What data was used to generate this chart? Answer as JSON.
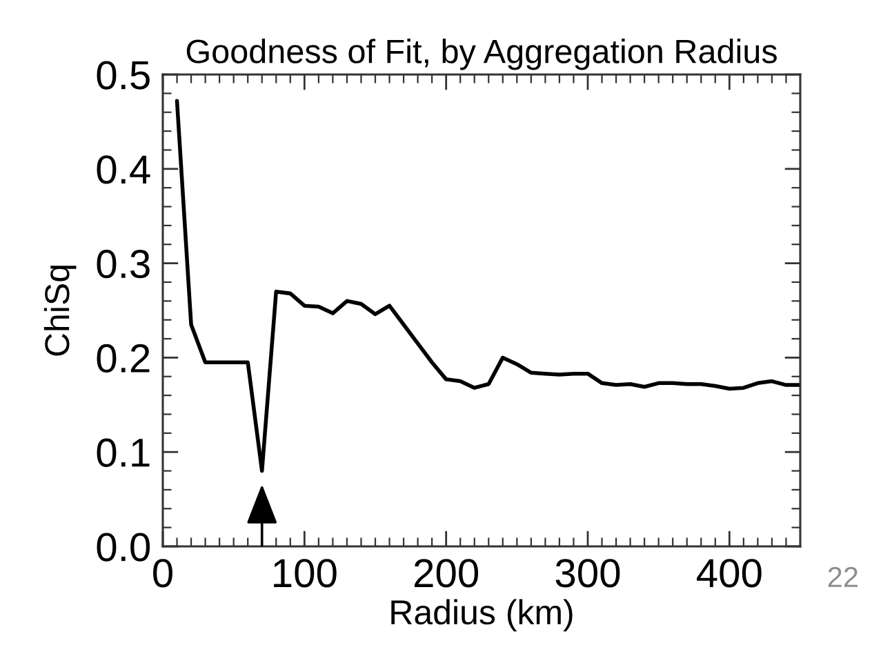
{
  "chart_data": {
    "type": "line",
    "title": "Goodness of Fit, by Aggregation Radius",
    "xlabel": "Radius (km)",
    "ylabel": "ChiSq",
    "x": [
      10,
      20,
      30,
      40,
      50,
      60,
      70,
      80,
      90,
      100,
      110,
      120,
      130,
      140,
      150,
      160,
      170,
      180,
      190,
      200,
      210,
      220,
      230,
      240,
      250,
      260,
      270,
      280,
      290,
      300,
      310,
      320,
      330,
      340,
      350,
      360,
      370,
      380,
      390,
      400,
      410,
      420,
      430,
      440,
      450
    ],
    "series": [
      {
        "color": "#000000",
        "values": [
          0.472,
          0.235,
          0.195,
          0.195,
          0.195,
          0.195,
          0.08,
          0.27,
          0.268,
          0.255,
          0.254,
          0.247,
          0.26,
          0.257,
          0.246,
          0.255,
          0.235,
          0.215,
          0.195,
          0.177,
          0.175,
          0.168,
          0.172,
          0.2,
          0.193,
          0.184,
          0.183,
          0.182,
          0.183,
          0.183,
          0.173,
          0.171,
          0.172,
          0.169,
          0.173,
          0.173,
          0.172,
          0.172,
          0.17,
          0.167,
          0.168,
          0.173,
          0.175,
          0.171,
          0.171
        ]
      }
    ],
    "xlim": [
      0,
      450
    ],
    "ylim": [
      0,
      0.5
    ],
    "xticks": [
      0,
      100,
      200,
      300,
      400,
      {
        "value": 10,
        "label": null
      },
      {
        "value": 20,
        "label": null
      },
      {
        "value": 30,
        "label": null
      },
      {
        "value": 40,
        "label": null
      },
      {
        "value": 50,
        "label": null
      },
      {
        "value": 60,
        "label": null
      },
      {
        "value": 70,
        "label": null
      },
      {
        "value": 80,
        "label": null
      },
      {
        "value": 90,
        "label": null
      },
      {
        "value": 110,
        "label": null
      },
      {
        "value": 120,
        "label": null
      },
      {
        "value": 130,
        "label": null
      },
      {
        "value": 140,
        "label": null
      },
      {
        "value": 150,
        "label": null
      },
      {
        "value": 160,
        "label": null
      },
      {
        "value": 170,
        "label": null
      },
      {
        "value": 180,
        "label": null
      },
      {
        "value": 190,
        "label": null
      },
      {
        "value": 210,
        "label": null
      },
      {
        "value": 220,
        "label": null
      },
      {
        "value": 230,
        "label": null
      },
      {
        "value": 240,
        "label": null
      },
      {
        "value": 250,
        "label": null
      },
      {
        "value": 260,
        "label": null
      },
      {
        "value": 270,
        "label": null
      },
      {
        "value": 280,
        "label": null
      },
      {
        "value": 290,
        "label": null
      },
      {
        "value": 310,
        "label": null
      },
      {
        "value": 320,
        "label": null
      },
      {
        "value": 330,
        "label": null
      },
      {
        "value": 340,
        "label": null
      },
      {
        "value": 350,
        "label": null
      },
      {
        "value": 360,
        "label": null
      },
      {
        "value": 370,
        "label": null
      },
      {
        "value": 380,
        "label": null
      },
      {
        "value": 390,
        "label": null
      },
      {
        "value": 410,
        "label": null
      },
      {
        "value": 420,
        "label": null
      },
      {
        "value": 430,
        "label": null
      },
      {
        "value": 440,
        "label": null
      }
    ],
    "yticks": [
      {
        "value": 0,
        "label": "0.0"
      },
      0.1,
      0.2,
      0.3,
      0.4,
      0.5,
      {
        "value": 0.02,
        "label": null
      },
      {
        "value": 0.04,
        "label": null
      },
      {
        "value": 0.06,
        "label": null
      },
      {
        "value": 0.08,
        "label": null
      },
      {
        "value": 0.12,
        "label": null
      },
      {
        "value": 0.14,
        "label": null
      },
      {
        "value": 0.16,
        "label": null
      },
      {
        "value": 0.18,
        "label": null
      },
      {
        "value": 0.22,
        "label": null
      },
      {
        "value": 0.24,
        "label": null
      },
      {
        "value": 0.26,
        "label": null
      },
      {
        "value": 0.28,
        "label": null
      },
      {
        "value": 0.32,
        "label": null
      },
      {
        "value": 0.34,
        "label": null
      },
      {
        "value": 0.36,
        "label": null
      },
      {
        "value": 0.38,
        "label": null
      },
      {
        "value": 0.42,
        "label": null
      },
      {
        "value": 0.44,
        "label": null
      },
      {
        "value": 0.46,
        "label": null
      },
      {
        "value": 0.48,
        "label": null
      }
    ],
    "line_style": "solid",
    "annotations": [
      "22"
    ]
  }
}
